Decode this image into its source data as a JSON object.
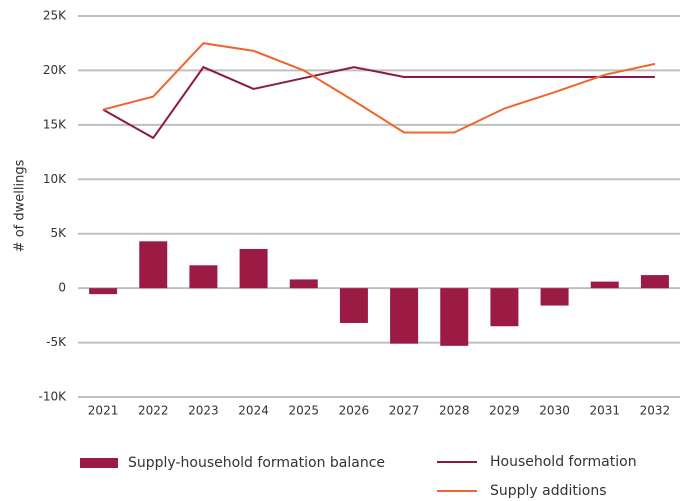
{
  "chart_data": {
    "type": "bar_line",
    "y_label": "# of dwellings",
    "categories": [
      "2021",
      "2022",
      "2023",
      "2024",
      "2025",
      "2026",
      "2027",
      "2028",
      "2029",
      "2030",
      "2031",
      "2032"
    ],
    "ylim": [
      -10000,
      25000
    ],
    "yticks": [
      {
        "value": -10000,
        "label": "-10K"
      },
      {
        "value": -5000,
        "label": "-5K"
      },
      0,
      {
        "value": 5000,
        "label": "5K"
      },
      {
        "value": 10000,
        "label": "10K"
      },
      {
        "value": 15000,
        "label": "15K"
      },
      {
        "value": 20000,
        "label": "20K"
      },
      {
        "value": 25000,
        "label": "25K"
      }
    ],
    "grid": true,
    "series": [
      {
        "name": "Supply-household formation balance",
        "type": "bar",
        "color": "#9b1b44",
        "values": [
          -550,
          4300,
          2100,
          3600,
          800,
          -3200,
          -5100,
          -5300,
          -3500,
          -1600,
          600,
          1200
        ]
      },
      {
        "name": "Household formation",
        "type": "line",
        "color": "#8b1a4a",
        "values": [
          16400,
          13800,
          20300,
          18300,
          19300,
          20300,
          19400,
          19400,
          19400,
          19400,
          19400,
          19400
        ]
      },
      {
        "name": "Supply additions",
        "type": "line",
        "color": "#f0642d",
        "values": [
          16400,
          17600,
          22500,
          21800,
          20000,
          17200,
          14300,
          14300,
          16500,
          18000,
          19600,
          20600
        ]
      }
    ]
  }
}
